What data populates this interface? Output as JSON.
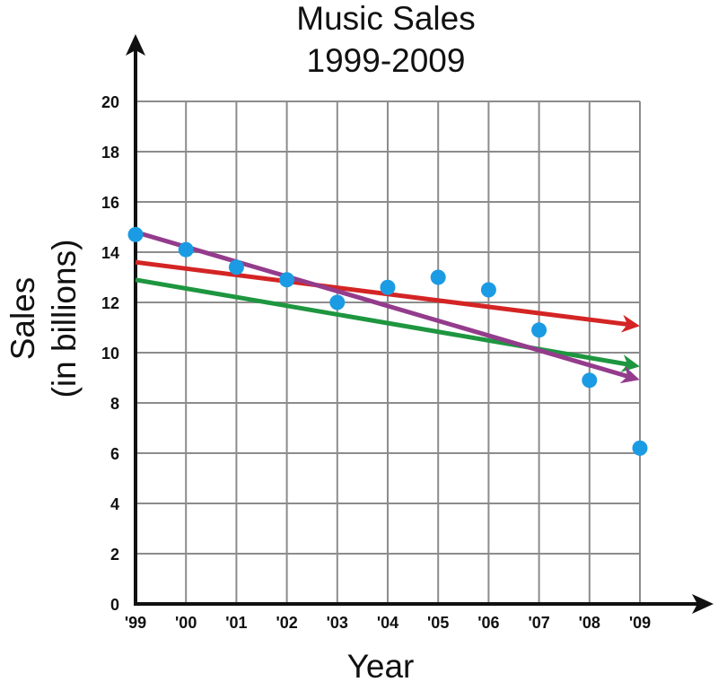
{
  "chart_data": {
    "type": "scatter",
    "title": "Music Sales",
    "subtitle": "1999-2009",
    "xlabel": "Year",
    "ylabel_line1": "Sales",
    "ylabel_line2": "(in billions)",
    "categories": [
      "'99",
      "'00",
      "'01",
      "'02",
      "'03",
      "'04",
      "'05",
      "'06",
      "'07",
      "'08",
      "'09"
    ],
    "y_ticks": [
      "0",
      "2",
      "4",
      "6",
      "8",
      "10",
      "12",
      "14",
      "16",
      "18",
      "20"
    ],
    "ylim": [
      0,
      20
    ],
    "grid": true,
    "points": [
      14.7,
      14.1,
      13.4,
      12.9,
      12.0,
      12.6,
      13.0,
      12.5,
      10.9,
      8.9,
      6.2
    ],
    "point_color": "#1b9be3",
    "trend_lines": [
      {
        "color": "#d42424",
        "start": [
          0,
          13.6
        ],
        "end": [
          10,
          11.1
        ]
      },
      {
        "color": "#1e9640",
        "start": [
          0,
          12.9
        ],
        "end": [
          10,
          9.5
        ]
      },
      {
        "color": "#943c8c",
        "start": [
          0,
          14.8
        ],
        "end": [
          10,
          9.0
        ]
      }
    ]
  }
}
